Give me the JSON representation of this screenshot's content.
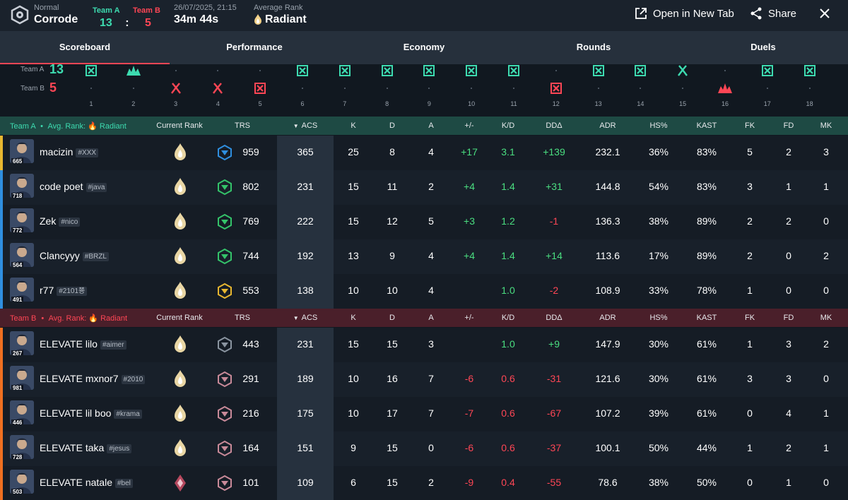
{
  "header": {
    "mode": "Normal",
    "map": "Corrode",
    "team_a_label": "Team A",
    "team_b_label": "Team B",
    "team_a_score": "13",
    "team_b_score": "5",
    "separator": ":",
    "datetime": "26/07/2025, 21:15",
    "duration": "34m 44s",
    "avg_rank_label": "Average Rank",
    "avg_rank": "Radiant",
    "open_new_tab": "Open in New Tab",
    "share": "Share"
  },
  "tabs": [
    "Scoreboard",
    "Performance",
    "Economy",
    "Rounds",
    "Duels"
  ],
  "timeline": {
    "team_a_label": "Team A",
    "team_b_label": "Team B",
    "team_a_score": "13",
    "team_b_score": "5",
    "rounds": [
      {
        "n": "1",
        "winner": "A",
        "icon": "elimination-icon"
      },
      {
        "n": "2",
        "winner": "A",
        "icon": "detonate-icon"
      },
      {
        "n": "3",
        "winner": "B",
        "icon": "defuse-icon"
      },
      {
        "n": "4",
        "winner": "B",
        "icon": "defuse-icon"
      },
      {
        "n": "5",
        "winner": "B",
        "icon": "elimination-icon"
      },
      {
        "n": "6",
        "winner": "A",
        "icon": "elimination-icon"
      },
      {
        "n": "7",
        "winner": "A",
        "icon": "elimination-icon"
      },
      {
        "n": "8",
        "winner": "A",
        "icon": "elimination-icon"
      },
      {
        "n": "9",
        "winner": "A",
        "icon": "elimination-icon"
      },
      {
        "n": "10",
        "winner": "A",
        "icon": "elimination-icon"
      },
      {
        "n": "11",
        "winner": "A",
        "icon": "elimination-icon"
      },
      {
        "n": "12",
        "winner": "B",
        "icon": "elimination-icon"
      },
      {
        "n": "13",
        "winner": "A",
        "icon": "elimination-icon"
      },
      {
        "n": "14",
        "winner": "A",
        "icon": "elimination-icon"
      },
      {
        "n": "15",
        "winner": "A",
        "icon": "defuse-icon"
      },
      {
        "n": "16",
        "winner": "B",
        "icon": "detonate-icon"
      },
      {
        "n": "17",
        "winner": "A",
        "icon": "elimination-icon"
      },
      {
        "n": "18",
        "winner": "A",
        "icon": "elimination-icon"
      }
    ]
  },
  "columns": [
    "Current Rank",
    "TRS",
    "ACS",
    "K",
    "D",
    "A",
    "+/-",
    "K/D",
    "DDΔ",
    "ADR",
    "HS%",
    "KAST",
    "FK",
    "FD",
    "MK"
  ],
  "team_a": {
    "name": "Team A",
    "avg_rank_label": "Avg. Rank:",
    "avg_rank": "Radiant",
    "players": [
      {
        "level": "665",
        "name": "macizin",
        "tag": "#XXX",
        "trs": "959",
        "acs": "365",
        "k": "25",
        "d": "8",
        "a": "4",
        "pm": "+17",
        "kd": "3.1",
        "dd": "+139",
        "adr": "232.1",
        "hs": "36%",
        "kast": "83%",
        "fk": "5",
        "fd": "2",
        "mk": "3",
        "strip": "#e8b730"
      },
      {
        "level": "718",
        "name": "code poet",
        "tag": "#java",
        "trs": "802",
        "acs": "231",
        "k": "15",
        "d": "11",
        "a": "2",
        "pm": "+4",
        "kd": "1.4",
        "dd": "+31",
        "adr": "144.8",
        "hs": "54%",
        "kast": "83%",
        "fk": "3",
        "fd": "1",
        "mk": "1",
        "strip": "#2f8fe0"
      },
      {
        "level": "772",
        "name": "Zek",
        "tag": "#nico",
        "trs": "769",
        "acs": "222",
        "k": "15",
        "d": "12",
        "a": "5",
        "pm": "+3",
        "kd": "1.2",
        "dd": "-1",
        "adr": "136.3",
        "hs": "38%",
        "kast": "89%",
        "fk": "2",
        "fd": "2",
        "mk": "0",
        "strip": "#2f8fe0"
      },
      {
        "level": "564",
        "name": "Clancyyy",
        "tag": "#BRZL",
        "trs": "744",
        "acs": "192",
        "k": "13",
        "d": "9",
        "a": "4",
        "pm": "+4",
        "kd": "1.4",
        "dd": "+14",
        "adr": "113.6",
        "hs": "17%",
        "kast": "89%",
        "fk": "2",
        "fd": "0",
        "mk": "2",
        "strip": "#2f8fe0"
      },
      {
        "level": "491",
        "name": "r77",
        "tag": "#2101쭁",
        "trs": "553",
        "acs": "138",
        "k": "10",
        "d": "10",
        "a": "4",
        "pm": "",
        "kd": "1.0",
        "dd": "-2",
        "adr": "108.9",
        "hs": "33%",
        "kast": "78%",
        "fk": "1",
        "fd": "0",
        "mk": "0",
        "strip": "#2f8fe0"
      }
    ]
  },
  "team_b": {
    "name": "Team B",
    "avg_rank_label": "Avg. Rank:",
    "avg_rank": "Radiant",
    "players": [
      {
        "level": "267",
        "name": "ELEVATE lilo",
        "tag": "#aimer",
        "trs": "443",
        "acs": "231",
        "k": "15",
        "d": "15",
        "a": "3",
        "pm": "",
        "kd": "1.0",
        "dd": "+9",
        "adr": "147.9",
        "hs": "30%",
        "kast": "61%",
        "fk": "1",
        "fd": "3",
        "mk": "2",
        "strip": "#f07020"
      },
      {
        "level": "981",
        "name": "ELEVATE mxnor7",
        "tag": "#2010",
        "trs": "291",
        "acs": "189",
        "k": "10",
        "d": "16",
        "a": "7",
        "pm": "-6",
        "kd": "0.6",
        "dd": "-31",
        "adr": "121.6",
        "hs": "30%",
        "kast": "61%",
        "fk": "3",
        "fd": "3",
        "mk": "0",
        "strip": "#f07020"
      },
      {
        "level": "446",
        "name": "ELEVATE lil boo",
        "tag": "#krama",
        "trs": "216",
        "acs": "175",
        "k": "10",
        "d": "17",
        "a": "7",
        "pm": "-7",
        "kd": "0.6",
        "dd": "-67",
        "adr": "107.2",
        "hs": "39%",
        "kast": "61%",
        "fk": "0",
        "fd": "4",
        "mk": "1",
        "strip": "#f07020"
      },
      {
        "level": "728",
        "name": "ELEVATE taka",
        "tag": "#jesus",
        "trs": "164",
        "acs": "151",
        "k": "9",
        "d": "15",
        "a": "0",
        "pm": "-6",
        "kd": "0.6",
        "dd": "-37",
        "adr": "100.1",
        "hs": "50%",
        "kast": "44%",
        "fk": "1",
        "fd": "2",
        "mk": "1",
        "strip": "#f07020"
      },
      {
        "level": "503",
        "name": "ELEVATE natale",
        "tag": "#bel",
        "trs": "101",
        "acs": "109",
        "k": "6",
        "d": "15",
        "a": "2",
        "pm": "-9",
        "kd": "0.4",
        "dd": "-55",
        "adr": "78.6",
        "hs": "38%",
        "kast": "50%",
        "fk": "0",
        "fd": "1",
        "mk": "0",
        "strip": "#f07020"
      }
    ]
  },
  "colors": {
    "team_a": "#3ddbb0",
    "team_b": "#ff4655",
    "positive": "#4ade80",
    "negative": "#ff4655"
  }
}
